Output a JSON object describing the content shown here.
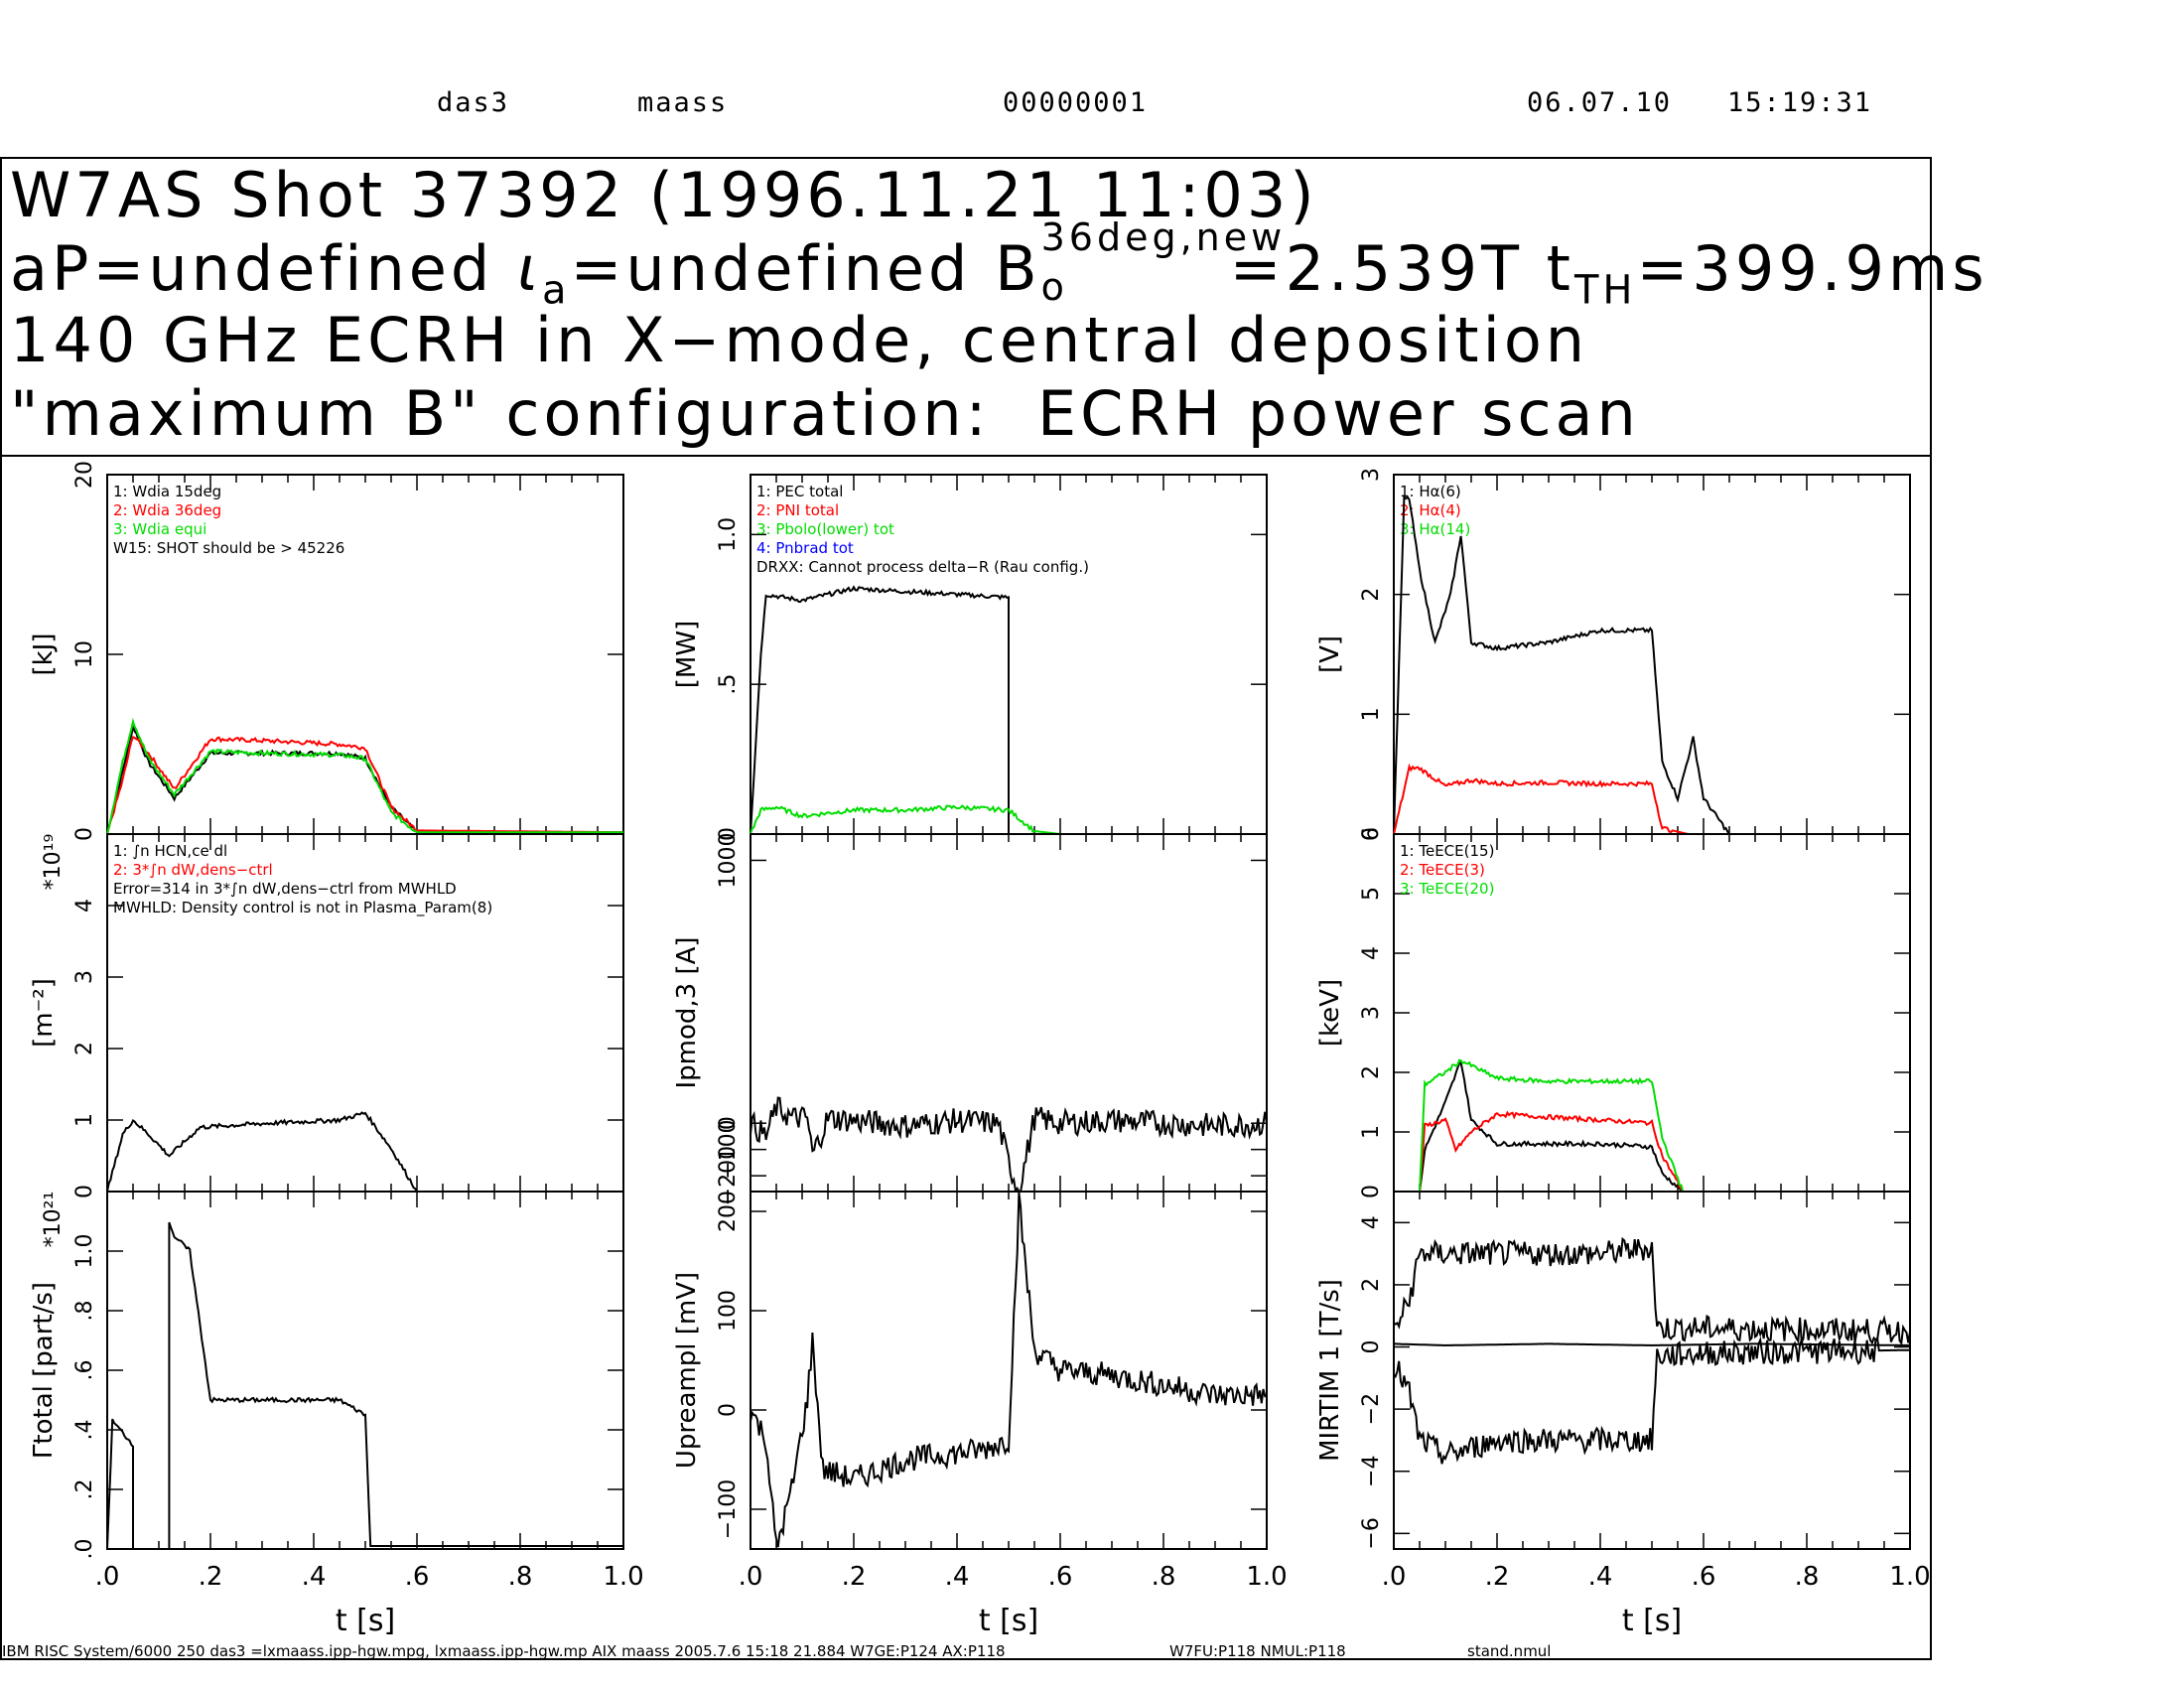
{
  "header": {
    "host": "das3",
    "user": "maass",
    "counter": "00000001",
    "date": "06.07.10",
    "time": "15:19:31"
  },
  "title": {
    "line1": "W7AS Shot 37392 (1996.11.21 11:03)",
    "line2a": "aP=undefined ",
    "line2b": "a",
    "line2c": "=undefined B",
    "line2d": "36deg,new",
    "line2e": "o",
    "line2f": "=2.539T t",
    "line2g": "TH",
    "line2h": "=399.9ms",
    "iota": "ι",
    "line3": "140 GHz ECRH in X−mode, central deposition",
    "line4": "\"maximum B\" configuration:  ECRH power scan"
  },
  "footer": {
    "left": "IBM RISC System/6000 250 das3 =lxmaass.ipp-hgw.mpg, lxmaass.ipp-hgw.mp AIX maass 2005.7.6 15:18 21.884 W7GE:P124 AX:P118",
    "mid": "W7FU:P118 NMUL:P118",
    "right": "stand.nmul"
  },
  "colors": {
    "s1": "#000000",
    "s2": "#ff0000",
    "s3": "#00dd00",
    "s4": "#0000ff"
  },
  "chart_data": [
    {
      "type": "line",
      "panel": "r0c0",
      "ylabel": "[kJ]",
      "ylim": [
        0,
        20
      ],
      "xlim": [
        0,
        1.0
      ],
      "yticks": [
        "0",
        "10",
        "20"
      ],
      "legend": [
        "1: Wdia 15deg",
        "2: Wdia 36deg",
        "3: Wdia equi",
        "W15: SHOT should be > 45226"
      ],
      "series": [
        {
          "name": "1",
          "t": [
            0,
            0.03,
            0.05,
            0.08,
            0.13,
            0.2,
            0.3,
            0.45,
            0.5,
            0.55,
            0.6,
            1.0
          ],
          "v": [
            0,
            3.5,
            6.0,
            4.0,
            2.0,
            4.5,
            4.5,
            4.5,
            4.2,
            1.5,
            0.1,
            0.1
          ]
        },
        {
          "name": "2",
          "t": [
            0,
            0.03,
            0.05,
            0.08,
            0.13,
            0.2,
            0.3,
            0.45,
            0.5,
            0.55,
            0.6,
            1.0
          ],
          "v": [
            0,
            3.0,
            5.5,
            4.5,
            2.5,
            5.3,
            5.2,
            5.0,
            4.8,
            1.5,
            0.2,
            0.1
          ]
        },
        {
          "name": "3",
          "t": [
            0,
            0.03,
            0.05,
            0.08,
            0.13,
            0.2,
            0.3,
            0.45,
            0.5,
            0.55,
            0.6,
            1.0
          ],
          "v": [
            0,
            4.0,
            6.3,
            4.2,
            2.2,
            4.6,
            4.5,
            4.4,
            4.2,
            1.2,
            0.1,
            0.1
          ]
        }
      ]
    },
    {
      "type": "line",
      "panel": "r0c1",
      "ylabel": "[MW]",
      "ylim": [
        0,
        1.2
      ],
      "xlim": [
        0,
        1.0
      ],
      "yticks": [
        "0",
        ".5",
        "1.0"
      ],
      "legend": [
        "1: PEC total",
        "2: PNI total",
        "3: Pbolo(lower) tot",
        "4: Pnbrad tot",
        "DRXX: Cannot process delta−R (Rau config.)"
      ],
      "series": [
        {
          "name": "1",
          "t": [
            0,
            0.02,
            0.03,
            0.1,
            0.2,
            0.3,
            0.4,
            0.5,
            0.5,
            1.0
          ],
          "v": [
            0,
            0.6,
            0.8,
            0.78,
            0.82,
            0.81,
            0.8,
            0.79,
            0,
            0
          ]
        },
        {
          "name": "3",
          "t": [
            0,
            0.02,
            0.05,
            0.1,
            0.2,
            0.3,
            0.4,
            0.5,
            0.55,
            0.6,
            1.0
          ],
          "v": [
            0,
            0.08,
            0.09,
            0.06,
            0.08,
            0.08,
            0.09,
            0.08,
            0.01,
            0,
            0
          ]
        }
      ]
    },
    {
      "type": "line",
      "panel": "r0c2",
      "ylabel": "[V]",
      "ylim": [
        0,
        3
      ],
      "xlim": [
        0,
        1.0
      ],
      "yticks": [
        "0",
        "1",
        "2",
        "3"
      ],
      "legend": [
        "1: Hα(6)",
        "2: Hα(4)",
        "3: Hα(14)"
      ],
      "series": [
        {
          "name": "1",
          "t": [
            0,
            0.02,
            0.03,
            0.05,
            0.08,
            0.11,
            0.13,
            0.15,
            0.2,
            0.3,
            0.4,
            0.5,
            0.52,
            0.55,
            0.58,
            0.6,
            0.65,
            1.0
          ],
          "v": [
            0,
            2.8,
            2.8,
            2.2,
            1.6,
            2.0,
            2.5,
            1.6,
            1.55,
            1.6,
            1.7,
            1.7,
            0.6,
            0.3,
            0.8,
            0.3,
            0,
            0
          ]
        },
        {
          "name": "2",
          "t": [
            0,
            0.03,
            0.05,
            0.1,
            0.15,
            0.2,
            0.3,
            0.4,
            0.5,
            0.52,
            0.57,
            0.6,
            1.0
          ],
          "v": [
            0,
            0.55,
            0.55,
            0.4,
            0.45,
            0.42,
            0.43,
            0.42,
            0.42,
            0.05,
            0,
            0,
            0
          ]
        }
      ]
    },
    {
      "type": "line",
      "panel": "r1c0",
      "ylabel": "[m⁻²]",
      "ylim": [
        0,
        5
      ],
      "xlim": [
        0,
        1.0
      ],
      "yticks": [
        "0",
        "1",
        "2",
        "3",
        "4"
      ],
      "ymult": "*10¹⁹",
      "legend": [
        "1: ∫n HCN,ce dl",
        "2: 3*∫n dW,dens−ctrl",
        "Error=314 in 3*∫n dW,dens−ctrl from MWHLD",
        "MWHLD: Density control is not in Plasma_Param(8)"
      ],
      "series": [
        {
          "name": "1",
          "t": [
            0,
            0.03,
            0.05,
            0.08,
            0.12,
            0.18,
            0.3,
            0.45,
            0.5,
            0.55,
            0.6,
            1.0
          ],
          "v": [
            0,
            0.8,
            1.0,
            0.8,
            0.5,
            0.9,
            0.95,
            1.0,
            1.1,
            0.6,
            0,
            0
          ]
        }
      ]
    },
    {
      "type": "line",
      "panel": "r1c1",
      "ylabel": "Ipmod,3 [A]",
      "ylim": [
        -260,
        1100
      ],
      "xlim": [
        0,
        1.0
      ],
      "yticks": [
        "−200",
        "−100",
        "0",
        "1000"
      ],
      "series": [
        {
          "name": "1",
          "t": [
            0,
            0.03,
            0.05,
            0.08,
            0.11,
            0.12,
            0.15,
            0.2,
            0.3,
            0.4,
            0.48,
            0.5,
            0.52,
            0.55,
            0.6,
            0.7,
            0.8,
            0.9,
            1.0
          ],
          "v": [
            0,
            -50,
            60,
            20,
            20,
            -120,
            20,
            10,
            -10,
            10,
            0,
            -150,
            -260,
            20,
            0,
            10,
            0,
            -10,
            0
          ]
        }
      ]
    },
    {
      "type": "line",
      "panel": "r1c2",
      "ylabel": "[keV]",
      "ylim": [
        0,
        6
      ],
      "xlim": [
        0,
        1.0
      ],
      "yticks": [
        "0",
        "1",
        "2",
        "3",
        "4",
        "5",
        "6"
      ],
      "legend": [
        "1: TeECE(15)",
        "2: TeECE(3)",
        "3: TeECE(20)"
      ],
      "series": [
        {
          "name": "1",
          "t": [
            0,
            0.05,
            0.06,
            0.1,
            0.13,
            0.15,
            0.2,
            0.3,
            0.4,
            0.5,
            0.52,
            0.56,
            1.0
          ],
          "v": [
            0,
            0,
            0.7,
            1.5,
            2.2,
            1.2,
            0.8,
            0.8,
            0.8,
            0.75,
            0.3,
            0,
            0
          ]
        },
        {
          "name": "2",
          "t": [
            0,
            0.05,
            0.06,
            0.1,
            0.12,
            0.15,
            0.2,
            0.3,
            0.4,
            0.5,
            0.52,
            0.56,
            1.0
          ],
          "v": [
            0,
            0,
            1.1,
            1.2,
            0.7,
            1.0,
            1.3,
            1.25,
            1.2,
            1.15,
            0.6,
            0,
            0
          ]
        },
        {
          "name": "3",
          "t": [
            0,
            0.05,
            0.06,
            0.1,
            0.13,
            0.2,
            0.3,
            0.4,
            0.5,
            0.52,
            0.56,
            1.0
          ],
          "v": [
            0,
            0,
            1.8,
            2.0,
            2.2,
            1.9,
            1.85,
            1.85,
            1.85,
            0.9,
            0,
            0
          ]
        }
      ]
    },
    {
      "type": "line",
      "panel": "r2c0",
      "ylabel": "Γtotal [part/s]",
      "ylim": [
        0,
        1.2
      ],
      "xlim": [
        0,
        1.0
      ],
      "yticks": [
        ".0",
        ".2",
        ".4",
        ".6",
        ".8",
        "1.0"
      ],
      "ymult": "*10²¹",
      "xlabel": "t [s]",
      "xticks": [
        ".0",
        ".2",
        ".4",
        ".6",
        ".8",
        "1.0"
      ],
      "series": [
        {
          "name": "1",
          "t": [
            0,
            0.01,
            0.05,
            0.05,
            0.12,
            0.12,
            0.13,
            0.16,
            0.2,
            0.3,
            0.45,
            0.5,
            0.51,
            1.0
          ],
          "v": [
            0,
            0.43,
            0.35,
            0,
            0,
            1.1,
            1.05,
            1.0,
            0.5,
            0.5,
            0.5,
            0.45,
            0.01,
            0.01
          ]
        }
      ]
    },
    {
      "type": "line",
      "panel": "r2c1",
      "ylabel": "Upreampl [mV]",
      "ylim": [
        -140,
        220
      ],
      "xlim": [
        0,
        1.0
      ],
      "yticks": [
        "−100",
        "0",
        "100",
        "200"
      ],
      "xlabel": "t [s]",
      "xticks": [
        ".0",
        ".2",
        ".4",
        ".6",
        ".8",
        "1.0"
      ],
      "series": [
        {
          "name": "1",
          "t": [
            0,
            0.03,
            0.05,
            0.08,
            0.11,
            0.12,
            0.14,
            0.2,
            0.3,
            0.45,
            0.5,
            0.52,
            0.55,
            0.6,
            0.7,
            0.8,
            0.9,
            1.0
          ],
          "v": [
            0,
            -30,
            -140,
            -80,
            10,
            70,
            -60,
            -70,
            -50,
            -40,
            -30,
            210,
            60,
            40,
            35,
            25,
            15,
            15
          ]
        }
      ]
    },
    {
      "type": "line",
      "panel": "r2c2",
      "ylabel": "MIRTIM 1 [T/s]",
      "ylim": [
        -6.5,
        5
      ],
      "xlim": [
        0,
        1.0
      ],
      "yticks": [
        "−6",
        "−4",
        "−2",
        "0",
        "2",
        "4"
      ],
      "xlabel": "t [s]",
      "xticks": [
        ".0",
        ".2",
        ".4",
        ".6",
        ".8",
        "1.0"
      ],
      "series": [
        {
          "name": "1",
          "t": [
            0,
            0.03,
            0.05,
            0.1,
            0.2,
            0.3,
            0.4,
            0.5,
            0.51,
            0.6,
            1.0
          ],
          "v": [
            0.5,
            1.5,
            3.0,
            3.0,
            3.0,
            3.0,
            3.0,
            3.2,
            0.6,
            0.6,
            0.5
          ]
        },
        {
          "name": "1b",
          "t": [
            0,
            0.1,
            0.3,
            0.5,
            0.7,
            1.0
          ],
          "v": [
            0.1,
            0.05,
            0.1,
            0.05,
            0.1,
            0.05
          ]
        },
        {
          "name": "1c",
          "t": [
            0,
            0.03,
            0.05,
            0.1,
            0.2,
            0.3,
            0.4,
            0.5,
            0.51,
            0.6,
            1.0
          ],
          "v": [
            -0.5,
            -1.5,
            -3.0,
            -3.5,
            -3.0,
            -3.0,
            -3.0,
            -3.0,
            -0.3,
            -0.2,
            -0.1
          ]
        }
      ]
    }
  ]
}
